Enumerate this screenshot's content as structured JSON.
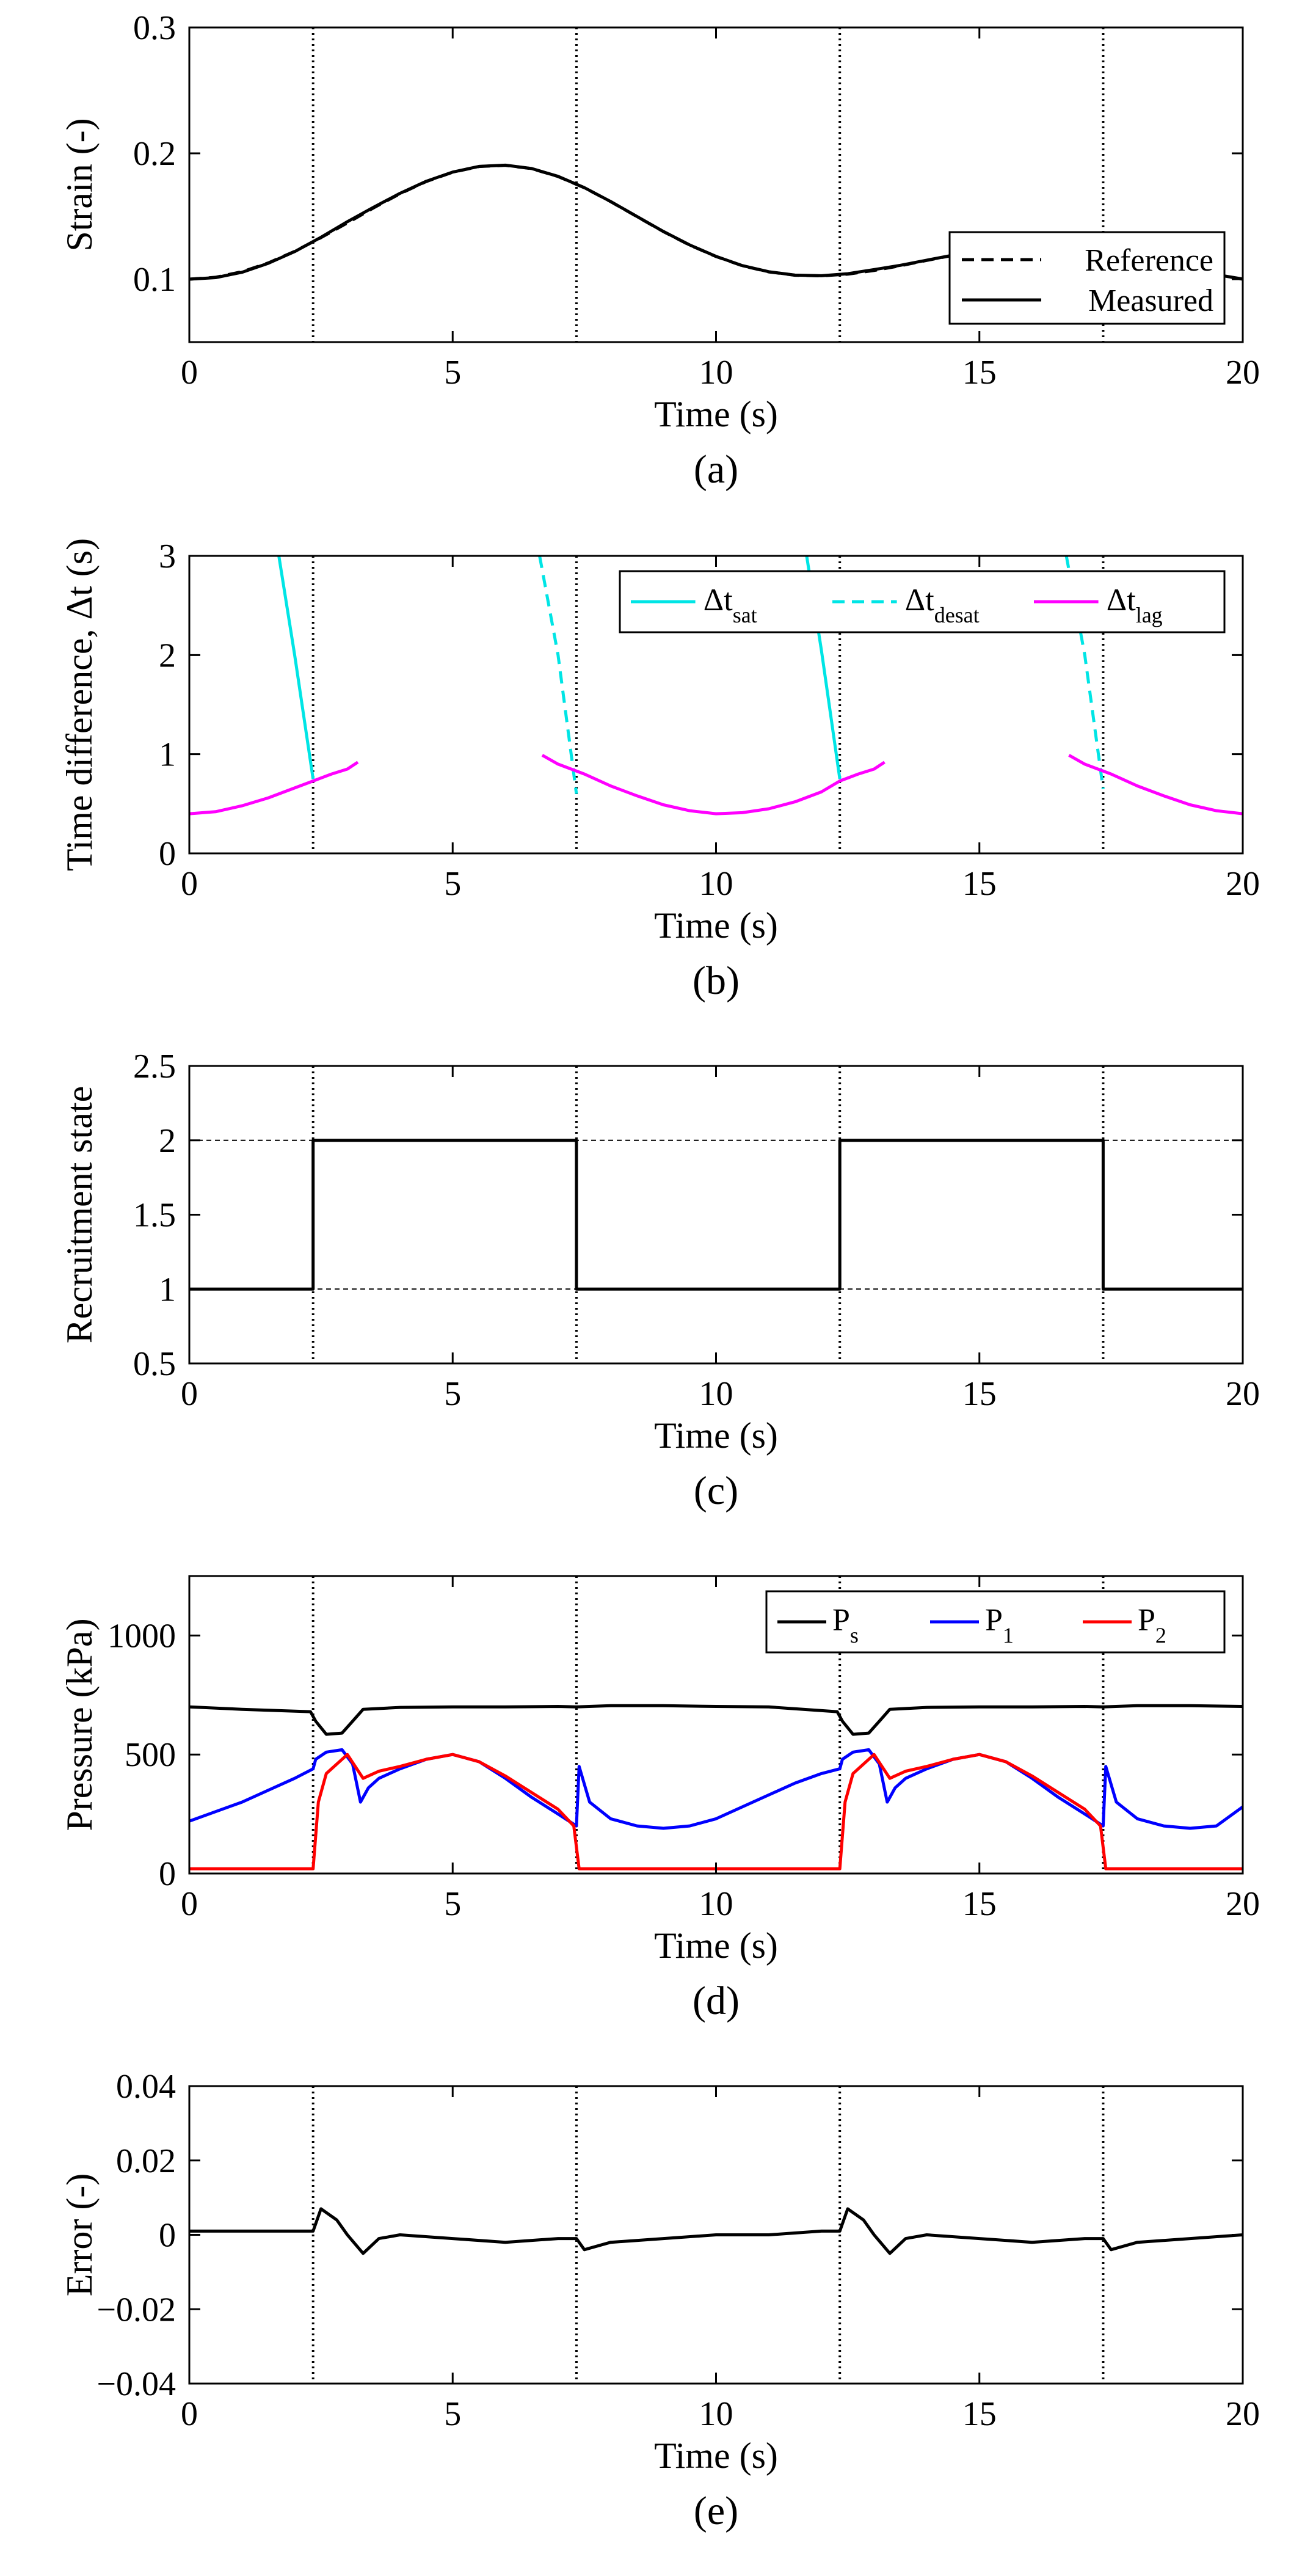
{
  "chart_data": [
    {
      "panel": "(a)",
      "type": "line",
      "xlabel": "Time (s)",
      "ylabel": "Strain (-)",
      "xlim": [
        0,
        20
      ],
      "ylim": [
        0.05,
        0.3
      ],
      "xticks": [
        0,
        5,
        10,
        15,
        20
      ],
      "yticks": [
        0.1,
        0.2,
        0.3
      ],
      "vlines": [
        2.35,
        7.35,
        12.35,
        17.35
      ],
      "legend_position": "bottom-right",
      "series": [
        {
          "name": "Reference",
          "style": "dashed",
          "color": "#000000",
          "x": [
            0,
            0.5,
            1,
            1.5,
            2,
            2.5,
            3,
            3.5,
            4,
            4.5,
            5,
            5.5,
            6,
            6.5,
            7,
            7.5,
            8,
            8.5,
            9,
            9.5,
            10,
            10.5,
            11,
            11.5,
            12,
            12.5,
            13,
            13.5,
            14,
            14.5,
            15,
            15.5,
            16,
            16.5,
            17,
            17.5,
            18,
            18.5,
            19,
            19.5,
            20
          ],
          "y": [
            0.1,
            0.1015,
            0.1059,
            0.1129,
            0.1221,
            0.133,
            0.1447,
            0.1567,
            0.1679,
            0.1776,
            0.185,
            0.1895,
            0.1905,
            0.1878,
            0.1816,
            0.1726,
            0.1616,
            0.1497,
            0.1378,
            0.1271,
            0.118,
            0.1107,
            0.1058,
            0.1031,
            0.1026,
            0.104,
            0.1069,
            0.1107,
            0.1149,
            0.119,
            0.1226,
            0.1251,
            0.1263,
            0.1259,
            0.1241,
            0.1209,
            0.1167,
            0.1121,
            0.1075,
            0.1035,
            0.1
          ]
        },
        {
          "name": "Measured",
          "style": "solid",
          "color": "#000000",
          "x": [
            0,
            0.5,
            1,
            1.5,
            2,
            2.5,
            3,
            3.5,
            4,
            4.5,
            5,
            5.5,
            6,
            6.5,
            7,
            7.5,
            8,
            8.5,
            9,
            9.5,
            10,
            10.5,
            11,
            11.5,
            12,
            12.5,
            13,
            13.5,
            14,
            14.5,
            15,
            15.5,
            16,
            16.5,
            17,
            17.5,
            18,
            18.5,
            19,
            19.5,
            20
          ],
          "y": [
            0.1,
            0.1012,
            0.1055,
            0.1126,
            0.1219,
            0.1333,
            0.1457,
            0.1572,
            0.1682,
            0.1778,
            0.1851,
            0.1896,
            0.1906,
            0.1879,
            0.1817,
            0.1727,
            0.1617,
            0.1498,
            0.1379,
            0.1272,
            0.1181,
            0.1108,
            0.1059,
            0.1032,
            0.1027,
            0.1043,
            0.1076,
            0.111,
            0.1151,
            0.1191,
            0.1227,
            0.1252,
            0.1264,
            0.126,
            0.1242,
            0.121,
            0.1168,
            0.1122,
            0.1076,
            0.1036,
            0.1001
          ]
        }
      ]
    },
    {
      "panel": "(b)",
      "type": "line",
      "xlabel": "Time (s)",
      "ylabel": "Time difference, Δt (s)",
      "xlim": [
        0,
        20
      ],
      "ylim": [
        0,
        3
      ],
      "xticks": [
        0,
        5,
        10,
        15,
        20
      ],
      "yticks": [
        0,
        1,
        2,
        3
      ],
      "vlines": [
        2.35,
        7.35,
        12.35,
        17.35
      ],
      "legend_position": "top-right",
      "series": [
        {
          "name": "Δt",
          "sub": "sat",
          "style": "solid",
          "color": "#00e5e5",
          "segments": [
            {
              "x": [
                1.7,
                2.0,
                2.35
              ],
              "y": [
                3.0,
                2.0,
                0.75
              ]
            },
            {
              "x": [
                11.72,
                12.0,
                12.35
              ],
              "y": [
                3.0,
                2.05,
                0.75
              ]
            }
          ]
        },
        {
          "name": "Δt",
          "sub": "desat",
          "style": "dashed",
          "color": "#00e5e5",
          "segments": [
            {
              "x": [
                6.65,
                7.0,
                7.35
              ],
              "y": [
                3.0,
                2.0,
                0.6
              ]
            },
            {
              "x": [
                16.65,
                17.0,
                17.35
              ],
              "y": [
                3.0,
                2.0,
                0.65
              ]
            }
          ]
        },
        {
          "name": "Δt",
          "sub": "lag",
          "style": "solid",
          "color": "#ff00ff",
          "segments": [
            {
              "x": [
                0,
                0.5,
                1.0,
                1.5,
                2.0,
                2.35,
                2.7,
                3.0,
                3.2
              ],
              "y": [
                0.4,
                0.42,
                0.48,
                0.56,
                0.66,
                0.73,
                0.8,
                0.85,
                0.92
              ]
            },
            {
              "x": [
                6.7,
                7.0,
                7.5,
                8.0,
                8.5,
                9.0,
                9.5,
                10.0,
                10.5,
                11.0,
                11.5,
                12.0,
                12.35,
                12.7,
                13.0,
                13.2
              ],
              "y": [
                0.99,
                0.9,
                0.8,
                0.68,
                0.58,
                0.49,
                0.43,
                0.4,
                0.41,
                0.45,
                0.52,
                0.62,
                0.73,
                0.8,
                0.85,
                0.92
              ]
            },
            {
              "x": [
                16.7,
                17.0,
                17.5,
                18.0,
                18.5,
                19.0,
                19.5,
                20.0
              ],
              "y": [
                0.99,
                0.9,
                0.8,
                0.68,
                0.58,
                0.49,
                0.43,
                0.4
              ]
            }
          ]
        }
      ]
    },
    {
      "panel": "(c)",
      "type": "line",
      "xlabel": "Time (s)",
      "ylabel": "Recruitment state",
      "xlim": [
        0,
        20
      ],
      "ylim": [
        0.5,
        2.5
      ],
      "xticks": [
        0,
        5,
        10,
        15,
        20
      ],
      "yticks": [
        0.5,
        1,
        1.5,
        2,
        2.5
      ],
      "vlines": [
        2.35,
        7.35,
        12.35,
        17.35
      ],
      "hlines": [
        1,
        2
      ],
      "series": [
        {
          "name": "",
          "style": "solid",
          "color": "#000000",
          "x": [
            0,
            2.35,
            2.35,
            7.35,
            7.35,
            12.35,
            12.35,
            17.35,
            17.35,
            20
          ],
          "y": [
            1,
            1,
            2,
            2,
            1,
            1,
            2,
            2,
            1,
            1
          ]
        }
      ]
    },
    {
      "panel": "(d)",
      "type": "line",
      "xlabel": "Time (s)",
      "ylabel": "Pressure (kPa)",
      "xlim": [
        0,
        20
      ],
      "ylim": [
        0,
        1250
      ],
      "xticks": [
        0,
        5,
        10,
        15,
        20
      ],
      "yticks": [
        0,
        500,
        1000
      ],
      "vlines": [
        2.35,
        7.35,
        12.35,
        17.35
      ],
      "legend_position": "top-right",
      "series": [
        {
          "name": "P",
          "sub": "s",
          "style": "solid",
          "color": "#000000",
          "x": [
            0,
            1,
            2.3,
            2.4,
            2.6,
            2.9,
            3.1,
            3.3,
            4,
            5,
            6,
            7,
            7.35,
            8,
            9,
            10,
            11,
            12.3,
            12.4,
            12.6,
            12.9,
            13.1,
            13.3,
            14,
            15,
            16,
            17,
            17.35,
            18,
            19,
            20
          ],
          "y": [
            700,
            690,
            680,
            640,
            585,
            590,
            640,
            690,
            698,
            700,
            700,
            702,
            700,
            705,
            705,
            702,
            700,
            680,
            640,
            585,
            590,
            640,
            690,
            698,
            700,
            700,
            702,
            700,
            705,
            705,
            702
          ]
        },
        {
          "name": "P",
          "sub": "1",
          "style": "solid",
          "color": "#0000ff",
          "x": [
            0,
            0.5,
            1,
            1.5,
            2,
            2.35,
            2.4,
            2.6,
            2.9,
            3.1,
            3.25,
            3.4,
            3.6,
            4,
            4.5,
            5,
            5.5,
            6,
            6.5,
            7,
            7.35,
            7.4,
            7.6,
            8,
            8.5,
            9,
            9.5,
            10,
            10.5,
            11,
            11.5,
            12,
            12.35,
            12.4,
            12.6,
            12.9,
            13.1,
            13.25,
            13.4,
            13.6,
            14,
            14.5,
            15,
            15.5,
            16,
            16.5,
            17,
            17.35,
            17.4,
            17.6,
            18,
            18.5,
            19,
            19.5,
            20
          ],
          "y": [
            220,
            260,
            300,
            350,
            400,
            440,
            480,
            510,
            520,
            460,
            300,
            360,
            400,
            440,
            480,
            500,
            470,
            400,
            320,
            250,
            200,
            450,
            300,
            230,
            200,
            190,
            200,
            230,
            280,
            330,
            380,
            420,
            440,
            480,
            510,
            520,
            460,
            300,
            360,
            400,
            440,
            480,
            500,
            470,
            400,
            320,
            250,
            200,
            450,
            300,
            230,
            200,
            190,
            200,
            280
          ]
        },
        {
          "name": "P",
          "sub": "2",
          "style": "solid",
          "color": "#ff0000",
          "x": [
            0,
            1,
            2,
            2.35,
            2.45,
            2.6,
            3.0,
            3.3,
            3.6,
            4,
            4.5,
            5,
            5.5,
            6,
            6.5,
            7,
            7.3,
            7.4,
            8,
            9,
            10,
            11,
            12,
            12.35,
            12.45,
            12.6,
            13.0,
            13.3,
            13.6,
            14,
            14.5,
            15,
            15.5,
            16,
            16.5,
            17,
            17.3,
            17.4,
            18,
            19,
            20
          ],
          "y": [
            20,
            20,
            20,
            20,
            300,
            420,
            500,
            400,
            430,
            450,
            480,
            500,
            470,
            410,
            340,
            270,
            200,
            20,
            20,
            20,
            20,
            20,
            20,
            20,
            300,
            420,
            500,
            400,
            430,
            450,
            480,
            500,
            470,
            410,
            340,
            270,
            200,
            20,
            20,
            20,
            20
          ]
        }
      ]
    },
    {
      "panel": "(e)",
      "type": "line",
      "xlabel": "Time (s)",
      "ylabel": "Error (-)",
      "xlim": [
        0,
        20
      ],
      "ylim": [
        -0.04,
        0.04
      ],
      "xticks": [
        0,
        5,
        10,
        15,
        20
      ],
      "yticks": [
        -0.04,
        -0.02,
        0,
        0.02,
        0.04
      ],
      "ytick_labels": [
        "−0.04",
        "−0.02",
        "0",
        "0.02",
        "0.04"
      ],
      "vlines": [
        2.35,
        7.35,
        12.35,
        17.35
      ],
      "series": [
        {
          "name": "",
          "style": "solid",
          "color": "#000000",
          "x": [
            0,
            1,
            2,
            2.35,
            2.5,
            2.8,
            3.0,
            3.3,
            3.6,
            4,
            5,
            6,
            7,
            7.35,
            7.5,
            8,
            9,
            10,
            11,
            12,
            12.35,
            12.5,
            12.8,
            13.0,
            13.3,
            13.6,
            14,
            15,
            16,
            17,
            17.35,
            17.5,
            18,
            19,
            20
          ],
          "y": [
            0.001,
            0.001,
            0.001,
            0.001,
            0.007,
            0.004,
            0.0,
            -0.005,
            -0.001,
            0.0,
            -0.001,
            -0.002,
            -0.001,
            -0.001,
            -0.004,
            -0.002,
            -0.001,
            0.0,
            0.0,
            0.001,
            0.001,
            0.007,
            0.004,
            0.0,
            -0.005,
            -0.001,
            0.0,
            -0.001,
            -0.002,
            -0.001,
            -0.001,
            -0.004,
            -0.002,
            -0.001,
            0.0
          ]
        }
      ]
    }
  ]
}
